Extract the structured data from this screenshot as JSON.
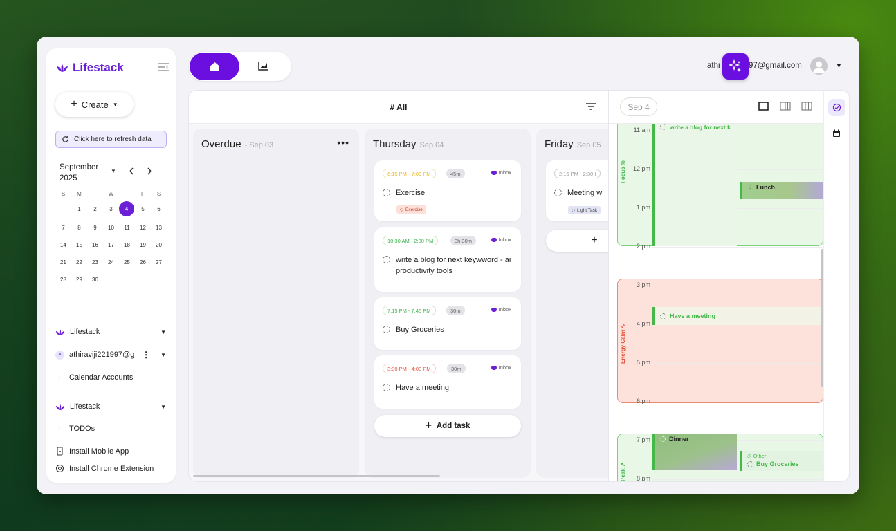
{
  "app": {
    "name": "Lifestack",
    "brand_color": "#6b1fd6"
  },
  "sidebar": {
    "create_label": "Create",
    "refresh_label": "Click here to refresh data",
    "calendar": {
      "month": "September",
      "year": "2025",
      "weekdays": [
        "S",
        "M",
        "T",
        "W",
        "T",
        "F",
        "S"
      ],
      "selected_day": "4"
    },
    "items": [
      {
        "label": "Lifestack"
      },
      {
        "label": "athiraviji221997@g",
        "avatar": "A"
      },
      {
        "label": "Calendar Accounts"
      },
      {
        "label": "Lifestack"
      },
      {
        "label": "TODOs"
      },
      {
        "label": "Install Mobile App"
      },
      {
        "label": "Install Chrome Extension"
      }
    ]
  },
  "header": {
    "user_prefix": "athi",
    "user_suffix": "997@gmail.com"
  },
  "board": {
    "title": "# All",
    "columns": [
      {
        "title": "Overdue",
        "date": "- Sep 03"
      },
      {
        "title": "Thursday",
        "date": "Sep 04"
      },
      {
        "title": "Friday",
        "date": "Sep 05"
      }
    ],
    "thursday_cards": [
      {
        "time": "6:15 PM - 7:00 PM",
        "duration": "45m",
        "list": "Inbox",
        "title": "Exercise",
        "tag": "Exercise",
        "time_color": "#f1b422"
      },
      {
        "time": "10:30 AM - 2:00 PM",
        "duration": "3h 30m",
        "list": "Inbox",
        "title": "write a blog for next keywword - ai productivity tools",
        "time_color": "#3bb54a"
      },
      {
        "time": "7:15 PM - 7:45 PM",
        "duration": "30m",
        "list": "Inbox",
        "title": "Buy Groceries",
        "time_color": "#3bb54a"
      },
      {
        "time": "3:30 PM - 4:00 PM",
        "duration": "30m",
        "list": "Inbox",
        "title": "Have a meeting",
        "time_color": "#e5533c"
      }
    ],
    "friday_cards": [
      {
        "time": "2:15 PM - 2:30 I",
        "title": "Meeting w",
        "tag": "Light Task"
      }
    ],
    "add_task_label": "Add task"
  },
  "calendar_pane": {
    "date_label": "Sep 4",
    "hours": [
      "11 am",
      "12 pm",
      "1 pm",
      "2 pm",
      "3 pm",
      "4 pm",
      "5 pm",
      "6 pm",
      "7 pm",
      "8 pm"
    ],
    "zones": [
      {
        "label": "Focus",
        "color": "#3bb54a"
      },
      {
        "label": "Energy Calm",
        "color": "#e5533c"
      },
      {
        "label": "Peak",
        "color": "#3bb54a"
      }
    ],
    "events": [
      {
        "title": "write a blog for next k"
      },
      {
        "title": "Lunch"
      },
      {
        "title": "Have a meeting"
      },
      {
        "title": "Dinner"
      },
      {
        "category": "Other",
        "title": "Buy Groceries"
      }
    ]
  }
}
